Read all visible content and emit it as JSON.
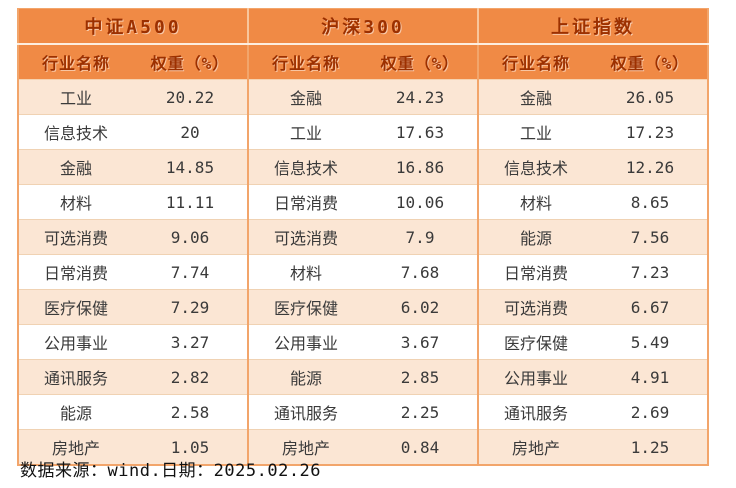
{
  "chart_data": {
    "type": "table",
    "title": "",
    "groups": [
      {
        "index_name": "中证A500",
        "columns": [
          "行业名称",
          "权重（%）"
        ],
        "rows": [
          [
            "工业",
            20.22
          ],
          [
            "信息技术",
            20
          ],
          [
            "金融",
            14.85
          ],
          [
            "材料",
            11.11
          ],
          [
            "可选消费",
            9.06
          ],
          [
            "日常消费",
            7.74
          ],
          [
            "医疗保健",
            7.29
          ],
          [
            "公用事业",
            3.27
          ],
          [
            "通讯服务",
            2.82
          ],
          [
            "能源",
            2.58
          ],
          [
            "房地产",
            1.05
          ]
        ]
      },
      {
        "index_name": "沪深300",
        "columns": [
          "行业名称",
          "权重（%）"
        ],
        "rows": [
          [
            "金融",
            24.23
          ],
          [
            "工业",
            17.63
          ],
          [
            "信息技术",
            16.86
          ],
          [
            "日常消费",
            10.06
          ],
          [
            "可选消费",
            7.9
          ],
          [
            "材料",
            7.68
          ],
          [
            "医疗保健",
            6.02
          ],
          [
            "公用事业",
            3.67
          ],
          [
            "能源",
            2.85
          ],
          [
            "通讯服务",
            2.25
          ],
          [
            "房地产",
            0.84
          ]
        ]
      },
      {
        "index_name": "上证指数",
        "columns": [
          "行业名称",
          "权重（%）"
        ],
        "rows": [
          [
            "金融",
            26.05
          ],
          [
            "工业",
            17.23
          ],
          [
            "信息技术",
            12.26
          ],
          [
            "材料",
            8.65
          ],
          [
            "能源",
            7.56
          ],
          [
            "日常消费",
            7.23
          ],
          [
            "可选消费",
            6.67
          ],
          [
            "医疗保健",
            5.49
          ],
          [
            "公用事业",
            4.91
          ],
          [
            "通讯服务",
            2.69
          ],
          [
            "房地产",
            1.25
          ]
        ]
      }
    ],
    "layout": "three index groups side by side, each with name and weight column, 11 rows"
  },
  "footer": {
    "source_text": "数据来源：wind.日期：2025.02.26"
  },
  "colors": {
    "header_background": "#f08a45",
    "header_text": "#9c3000",
    "row_stripe": "#fbe6d4",
    "row_white": "#ffffff",
    "grid_line": "#f0d2b3",
    "group_divider": "#f2a56b",
    "data_text": "#3a3a3a",
    "footer_text": "#111111"
  }
}
